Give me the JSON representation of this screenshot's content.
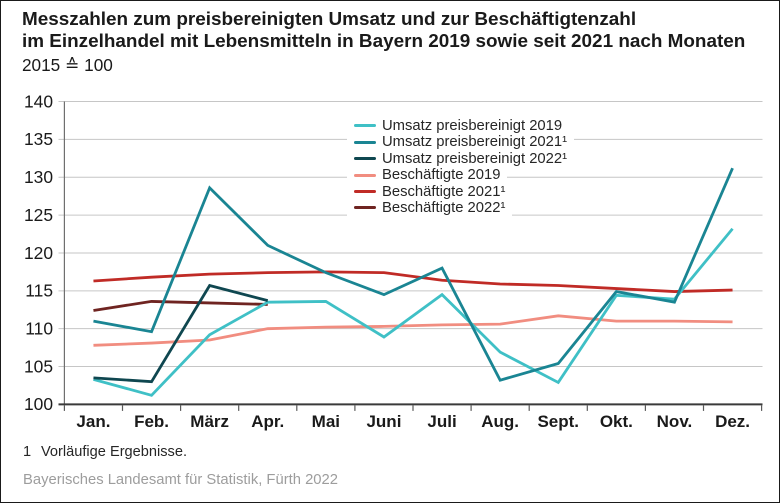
{
  "title": {
    "line1": "Messzahlen zum preisbereinigten Umsatz und zur Beschäftigtenzahl",
    "line2": "im Einzelhandel mit Lebensmitteln in Bayern 2019 sowie seit 2021 nach Monaten",
    "subtitle": "2015 ≙ 100"
  },
  "footnote": {
    "marker": "1",
    "text": "Vorläufige Ergebnisse."
  },
  "source": "Bayerisches Landesamt für Statistik, Fürth 2022",
  "chart_data": {
    "type": "line",
    "categories": [
      "Jan.",
      "Feb.",
      "März",
      "Apr.",
      "Mai",
      "Juni",
      "Juli",
      "Aug.",
      "Sept.",
      "Okt.",
      "Nov.",
      "Dez."
    ],
    "ylim": [
      100,
      140
    ],
    "ytick_step": 5,
    "yticks": [
      100,
      105,
      110,
      115,
      120,
      125,
      130,
      135,
      140
    ],
    "grid": true,
    "legend_position": "inside-top-center",
    "colors": {
      "grid": "#c6c6c6",
      "x_axis": "#3a3a3a",
      "y_axis": "#6f6f6f",
      "tick": "#5a5a5a",
      "text": "#1a1a1a"
    },
    "series": [
      {
        "name": "Beschäftigte 2019",
        "color": "#f18d80",
        "values": [
          107.8,
          108.1,
          108.5,
          110.0,
          110.2,
          110.3,
          110.5,
          110.6,
          111.7,
          111.0,
          111.0,
          110.9
        ]
      },
      {
        "name": "Beschäftigte 2021¹",
        "color": "#c02b26",
        "values": [
          116.3,
          116.8,
          117.2,
          117.4,
          117.5,
          117.4,
          116.4,
          115.9,
          115.7,
          115.3,
          114.9,
          115.1
        ]
      },
      {
        "name": "Beschäftigte 2022¹",
        "color": "#6f2421",
        "values": [
          112.4,
          113.6,
          113.4,
          113.2,
          null,
          null,
          null,
          null,
          null,
          null,
          null,
          null
        ]
      },
      {
        "name": "Umsatz preisbereinigt 2019",
        "color": "#3fc0c6",
        "values": [
          103.3,
          101.2,
          109.2,
          113.5,
          113.6,
          108.9,
          114.5,
          106.9,
          102.9,
          114.4,
          113.9,
          123.2
        ]
      },
      {
        "name": "Umsatz preisbereinigt 2021¹",
        "color": "#1a8593",
        "values": [
          111.0,
          109.6,
          128.6,
          121.0,
          117.4,
          114.5,
          118.0,
          103.2,
          105.4,
          114.9,
          113.5,
          131.2
        ]
      },
      {
        "name": "Umsatz preisbereinigt 2022¹",
        "color": "#0f4750",
        "values": [
          103.5,
          103.0,
          115.7,
          113.7,
          null,
          null,
          null,
          null,
          null,
          null,
          null,
          null
        ]
      }
    ],
    "legend_order": [
      "Umsatz preisbereinigt 2019",
      "Umsatz preisbereinigt 2021¹",
      "Umsatz preisbereinigt 2022¹",
      "Beschäftigte 2019",
      "Beschäftigte 2021¹",
      "Beschäftigte 2022¹"
    ]
  }
}
